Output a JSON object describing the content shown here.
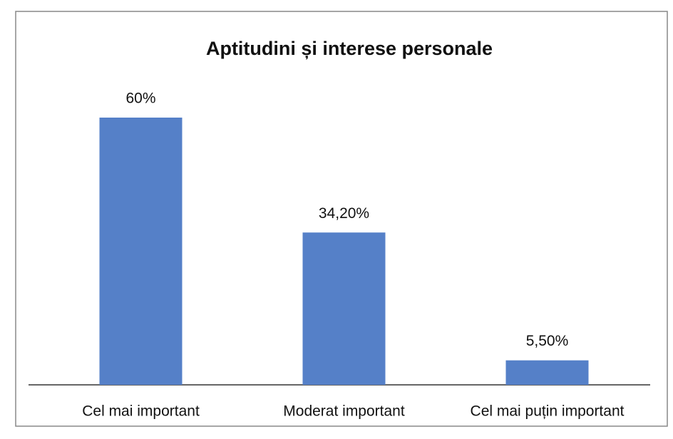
{
  "chart_data": {
    "type": "bar",
    "title": "Aptitudini și interese personale",
    "categories": [
      "Cel mai important",
      "Moderat important",
      "Cel mai puțin important"
    ],
    "values": [
      60,
      34.2,
      5.5
    ],
    "value_labels": [
      "60%",
      "34,20%",
      "5,50%"
    ],
    "color": "#5580c8"
  }
}
